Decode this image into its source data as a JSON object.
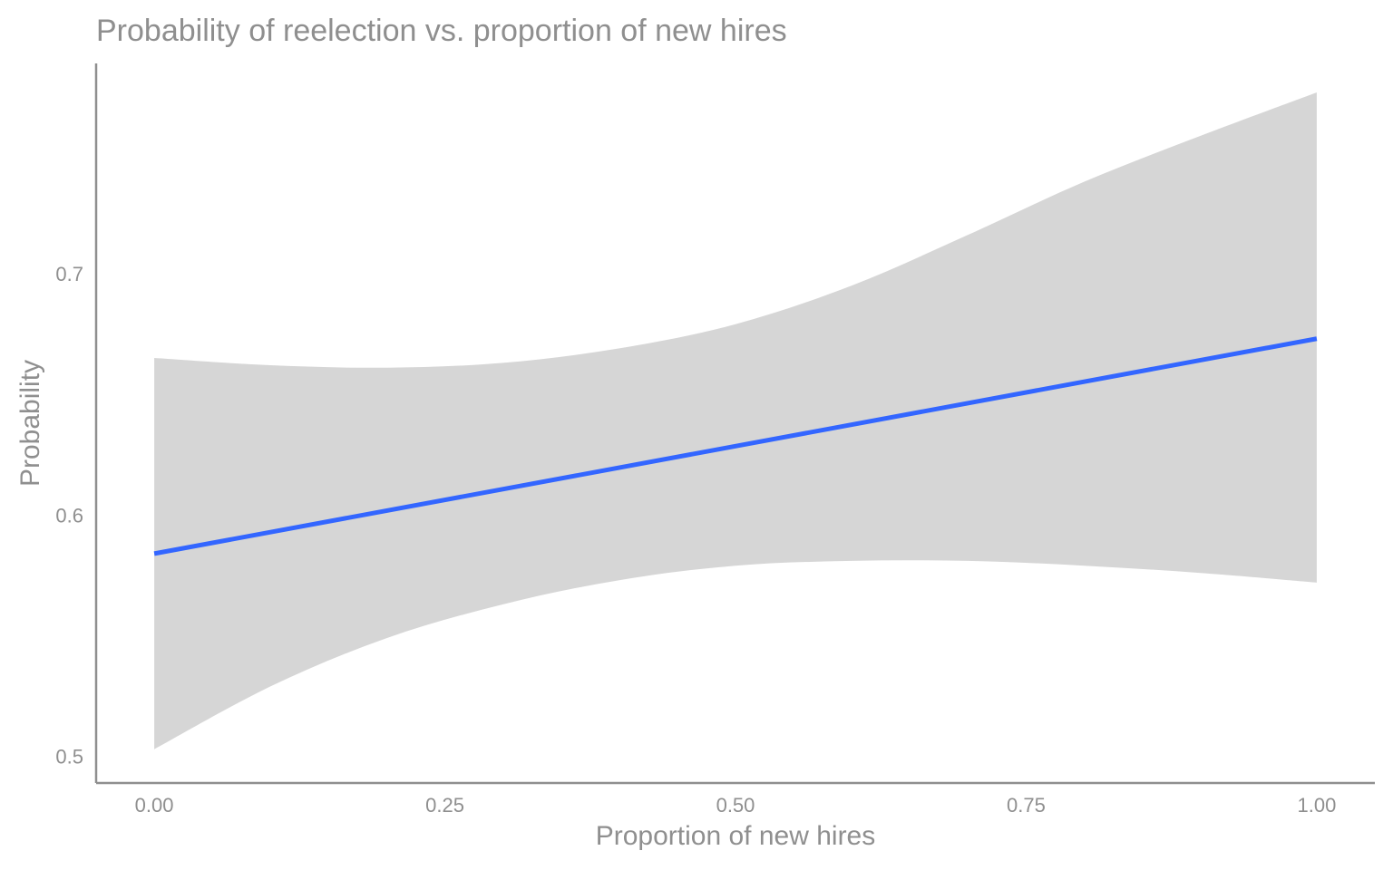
{
  "chart_data": {
    "type": "line",
    "title": "Probability of reelection vs. proportion of new hires",
    "xlabel": "Proportion of new hires",
    "ylabel": "Probability",
    "xlim": [
      -0.05,
      1.05
    ],
    "ylim": [
      0.489,
      0.787
    ],
    "x_ticks": [
      0.0,
      0.25,
      0.5,
      0.75,
      1.0
    ],
    "x_tick_labels": [
      "0.00",
      "0.25",
      "0.50",
      "0.75",
      "1.00"
    ],
    "y_ticks": [
      0.5,
      0.6,
      0.7
    ],
    "y_tick_labels": [
      "0.5",
      "0.6",
      "0.7"
    ],
    "grid": false,
    "legend": "none",
    "colors": {
      "line": "#3366ff",
      "ribbon": "#d6d6d6",
      "text": "#8f8f8f"
    },
    "series": [
      {
        "x": [
          0.0,
          1.0
        ],
        "y": [
          0.584,
          0.673
        ]
      }
    ],
    "ribbon": {
      "x": [
        0.0,
        0.1,
        0.2,
        0.3,
        0.4,
        0.5,
        0.6,
        0.7,
        0.8,
        0.9,
        1.0
      ],
      "lower": [
        0.503,
        0.529,
        0.549,
        0.563,
        0.573,
        0.579,
        0.581,
        0.581,
        0.579,
        0.576,
        0.572
      ],
      "upper": [
        0.665,
        0.662,
        0.661,
        0.663,
        0.669,
        0.679,
        0.695,
        0.716,
        0.738,
        0.757,
        0.775
      ]
    }
  }
}
